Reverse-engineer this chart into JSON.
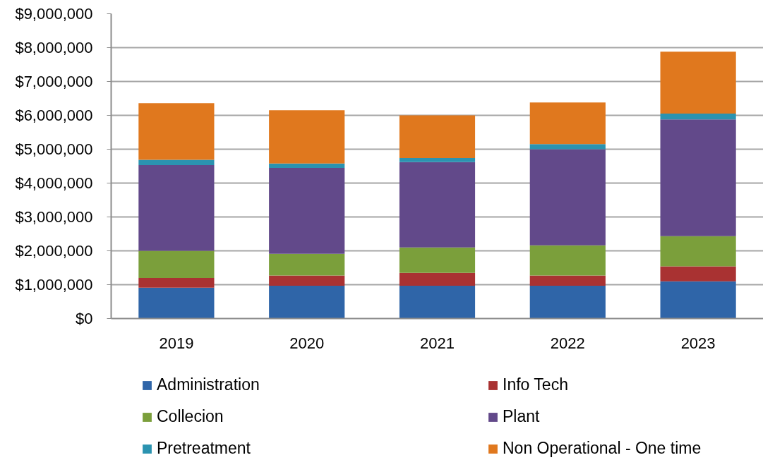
{
  "chart_data": {
    "type": "bar",
    "stacked": true,
    "categories": [
      "2019",
      "2020",
      "2021",
      "2022",
      "2023"
    ],
    "series": [
      {
        "name": "Administration",
        "color": "#2f65a8",
        "values": [
          910000,
          970000,
          970000,
          970000,
          1100000
        ]
      },
      {
        "name": "Info Tech",
        "color": "#a93232",
        "values": [
          290000,
          300000,
          380000,
          300000,
          440000
        ]
      },
      {
        "name": "Collecion",
        "color": "#7b9f3b",
        "values": [
          800000,
          640000,
          750000,
          890000,
          890000
        ]
      },
      {
        "name": "Plant",
        "color": "#62498a",
        "values": [
          2530000,
          2540000,
          2520000,
          2840000,
          3450000
        ]
      },
      {
        "name": "Pretreatment",
        "color": "#2b93b0",
        "values": [
          160000,
          130000,
          120000,
          150000,
          170000
        ]
      },
      {
        "name": "Non Operational - One time",
        "color": "#e0781e",
        "values": [
          1670000,
          1570000,
          1260000,
          1230000,
          1830000
        ]
      }
    ],
    "ylim": [
      0,
      9000000
    ],
    "yticks": [
      {
        "value": 0,
        "label": "$0"
      },
      {
        "value": 1000000,
        "label": "$1,000,000"
      },
      {
        "value": 2000000,
        "label": "$2,000,000"
      },
      {
        "value": 3000000,
        "label": "$3,000,000"
      },
      {
        "value": 4000000,
        "label": "$4,000,000"
      },
      {
        "value": 5000000,
        "label": "$5,000,000"
      },
      {
        "value": 6000000,
        "label": "$6,000,000"
      },
      {
        "value": 7000000,
        "label": "$7,000,000"
      },
      {
        "value": 8000000,
        "label": "$8,000,000"
      },
      {
        "value": 9000000,
        "label": "$9,000,000"
      }
    ],
    "grid": "y",
    "legend": "bottom"
  }
}
